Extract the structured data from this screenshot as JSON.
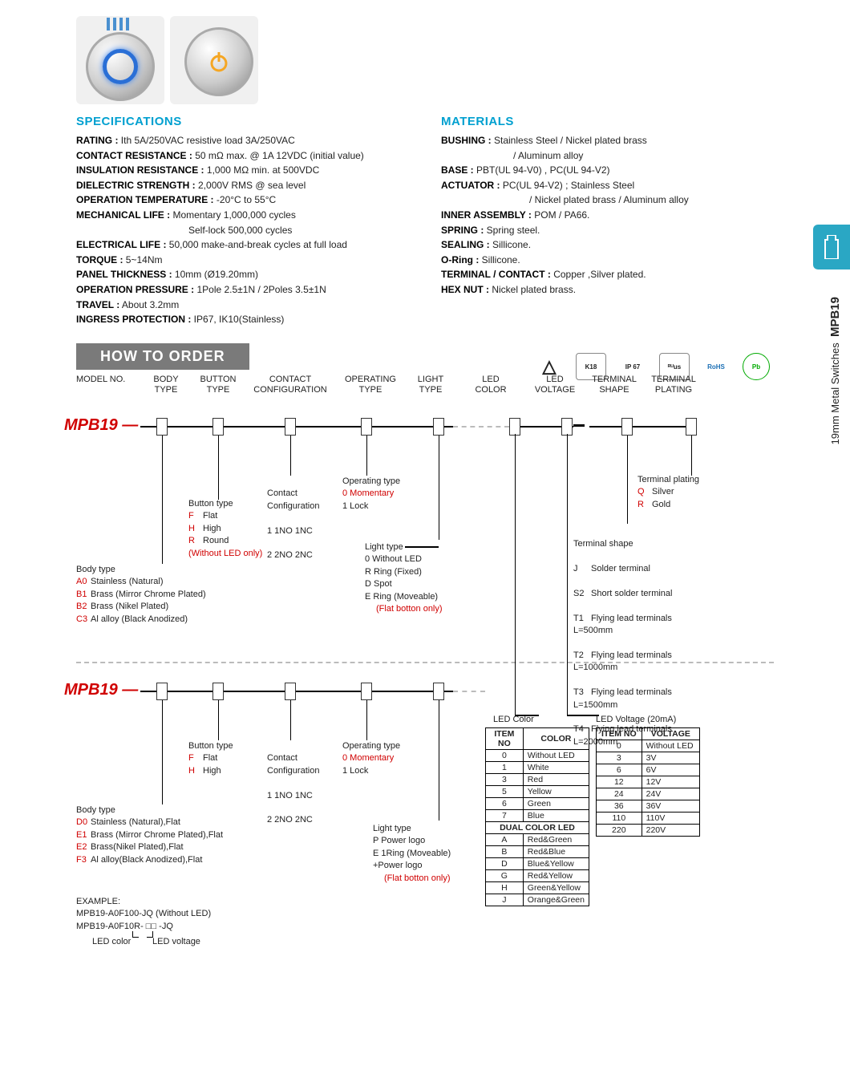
{
  "sideTab": {
    "model": "MPB19",
    "subtitle": "19mm Metal Switches"
  },
  "specsTitle": "SPECIFICATIONS",
  "materialsTitle": "MATERIALS",
  "howTitle": "HOW TO ORDER",
  "specs": {
    "rating_k": "RATING :",
    "rating_v": " Ith 5A/250VAC resistive load 3A/250VAC",
    "contres_k": "CONTACT RESISTANCE :",
    "contres_v": " 50 mΩ max. @ 1A 12VDC (initial value)",
    "insres_k": "INSULATION RESISTANCE :",
    "insres_v": " 1,000 MΩ min. at 500VDC",
    "diel_k": "DIELECTRIC STRENGTH :",
    "diel_v": " 2,000V RMS @ sea level",
    "optemp_k": "OPERATION TEMPERATURE :",
    "optemp_v": " -20°C to 55°C",
    "mech_k": "MECHANICAL LIFE :",
    "mech_v": " Momentary 1,000,000 cycles",
    "mech_v2": "Self-lock 500,000 cycles",
    "elec_k": "ELECTRICAL LIFE :",
    "elec_v": " 50,000 make-and-break cycles at full load",
    "torque_k": "TORQUE :",
    "torque_v": " 5~14Nm",
    "panel_k": "PANEL THICKNESS :",
    "panel_v": " 10mm (Ø19.20mm)",
    "oppres_k": "OPERATION PRESSURE :",
    "oppres_v": " 1Pole 2.5±1N / 2Poles 3.5±1N",
    "travel_k": "TRAVEL :",
    "travel_v": " About 3.2mm",
    "ingress_k": "INGRESS PROTECTION :",
    "ingress_v": " IP67, IK10(Stainless)"
  },
  "materials": {
    "bushing_k": "BUSHING :",
    "bushing_v": " Stainless Steel / Nickel plated brass",
    "bushing_v2": "/ Aluminum alloy",
    "base_k": "BASE :",
    "base_v": " PBT(UL 94-V0) ,  PC(UL 94-V2)",
    "actuator_k": "ACTUATOR :",
    "actuator_v": " PC(UL 94-V2) ; Stainless Steel",
    "actuator_v2": "/ Nickel plated brass / Aluminum  alloy",
    "inner_k": "INNER ASSEMBLY :",
    "inner_v": " POM / PA66.",
    "spring_k": "SPRING :",
    "spring_v": " Spring steel.",
    "sealing_k": "SEALING :",
    "sealing_v": " Sillicone.",
    "oring_k": "O-Ring :",
    "oring_v": " Sillicone.",
    "terminal_k": "TERMINAL / CONTACT :",
    "terminal_v": " Copper ,Silver plated.",
    "hexnut_k": "HEX NUT :",
    "hexnut_v": " Nickel plated brass."
  },
  "certs": [
    "△",
    "K18",
    "IP 67",
    "ᴿᵁus",
    "RoHS",
    "Pb"
  ],
  "headers": {
    "model": "MODEL NO.",
    "body": "BODY\nTYPE",
    "button": "BUTTON\nTYPE",
    "contact": "CONTACT\nCONFIGURATION",
    "operating": "OPERATING\nTYPE",
    "light": "LIGHT\nTYPE",
    "ledcolor": "LED\nCOLOR",
    "ledvolt": "LED\nVOLTAGE",
    "termshape": "TERMINAL\nSHAPE",
    "termplat": "TERMINAL\nPLATING"
  },
  "model": "MPB19",
  "d1": {
    "buttonTitle": "Button type",
    "button": {
      "F": "Flat",
      "H": "High",
      "R": "Round",
      "note": "(Without LED only)"
    },
    "bodyTitle": "Body type",
    "body": {
      "A0": "Stainless (Natural)",
      "B1": "Brass (Mirror Chrome Plated)",
      "B2": "Brass (Nikel Plated)",
      "C3": "Al alloy (Black Anodized)"
    },
    "contactTitle": "Contact\nConfiguration",
    "contact": {
      "c1": "1  1NO 1NC",
      "c2": "2  2NO 2NC"
    },
    "operTitle": "Operating type",
    "oper": {
      "o0": "0  Momentary",
      "o1": "1  Lock"
    },
    "lightTitle": "Light type",
    "light": {
      "l0": "0  Without LED",
      "lR": "R  Ring (Fixed)",
      "lD": "D  Spot",
      "lE": "E  Ring (Moveable)",
      "note": "(Flat botton only)"
    },
    "termplatTitle": "Terminal plating",
    "termplat": {
      "Q": "Silver",
      "R": "Gold"
    },
    "termshapeTitle": "Terminal shape",
    "termshape": {
      "J": "Solder terminal",
      "S2": "Short solder terminal",
      "T1": "Flying lead terminals\n        L=500mm",
      "T2": "Flying lead terminals\n        L=1000mm",
      "T3": "Flying lead terminals\n        L=1500mm",
      "T4": "Flying lead terminals\n        L=2000mm"
    }
  },
  "d2": {
    "buttonTitle": "Button type",
    "button": {
      "F": "Flat",
      "H": "High"
    },
    "bodyTitle": "Body type",
    "body": {
      "D0": "Stainless (Natural),Flat",
      "E1": "Brass (Mirror Chrome Plated),Flat",
      "E2": "Brass(Nikel Plated),Flat",
      "F3": "Al alloy(Black Anodized),Flat"
    },
    "contactTitle": "Contact\nConfiguration",
    "contact": {
      "c1": "1  1NO 1NC",
      "c2": "2  2NO 2NC"
    },
    "operTitle": "Operating type",
    "oper": {
      "o0": "0  Momentary",
      "o1": "1  Lock"
    },
    "lightTitle": "Light type",
    "light": {
      "lP": "P  Power logo",
      "lE": "E 1Ring (Moveable)",
      "lE2": "    +Power logo",
      "note": "(Flat botton only)"
    }
  },
  "ledColor": {
    "title": "LED Color",
    "header": [
      "ITEM NO",
      "COLOR"
    ],
    "rows": [
      [
        "0",
        "Without LED"
      ],
      [
        "1",
        "White"
      ],
      [
        "3",
        "Red"
      ],
      [
        "5",
        "Yellow"
      ],
      [
        "6",
        "Green"
      ],
      [
        "7",
        "Blue"
      ]
    ],
    "dualHeader": "DUAL COLOR LED",
    "dualRows": [
      [
        "A",
        "Red&Green"
      ],
      [
        "B",
        "Red&Blue"
      ],
      [
        "D",
        "Blue&Yellow"
      ],
      [
        "G",
        "Red&Yellow"
      ],
      [
        "H",
        "Green&Yellow"
      ],
      [
        "J",
        "Orange&Green"
      ]
    ]
  },
  "ledVolt": {
    "title": "LED Voltage (20mA)",
    "header": [
      "ITEM NO",
      "VOLTAGE"
    ],
    "rows": [
      [
        "0",
        "Without LED"
      ],
      [
        "3",
        "3V"
      ],
      [
        "6",
        "6V"
      ],
      [
        "12",
        "12V"
      ],
      [
        "24",
        "24V"
      ],
      [
        "36",
        "36V"
      ],
      [
        "110",
        "110V"
      ],
      [
        "220",
        "220V"
      ]
    ]
  },
  "example": {
    "t": "EXAMPLE:",
    "l1": "MPB19-A0F100-JQ (Without LED)",
    "l2": "MPB19-A0F10R- □□ -JQ",
    "l3a": "LED color",
    "l3b": "LED voltage"
  }
}
